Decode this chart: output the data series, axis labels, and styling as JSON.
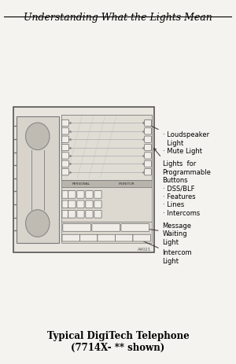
{
  "bg_color": "#f5f3ef",
  "title_text": "Understanding What the Lights Mean",
  "title_fontsize": 9,
  "caption_line1": "Typical DigiTech Telephone",
  "caption_line2": "(7714X- ** shown)",
  "caption_fontsize": 8.5
}
